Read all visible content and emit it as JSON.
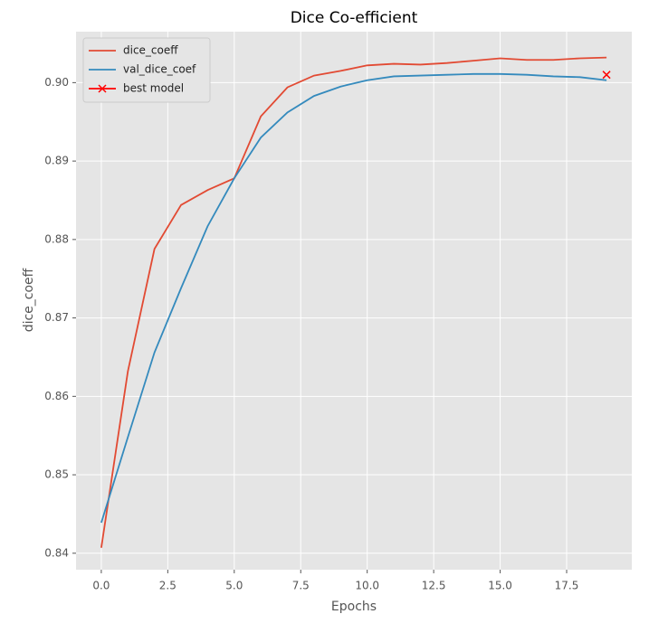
{
  "chart_data": {
    "type": "line",
    "title": "Dice Co-efficient",
    "x_label": "Epochs",
    "y_label": "dice_coeff",
    "x": [
      0,
      1,
      2,
      3,
      4,
      5,
      6,
      7,
      8,
      9,
      10,
      11,
      12,
      13,
      14,
      15,
      16,
      17,
      18,
      19
    ],
    "series": [
      {
        "name": "dice_coeff",
        "color": "#E24A33",
        "values": [
          0.8407,
          0.8632,
          0.8788,
          0.8844,
          0.8863,
          0.8878,
          0.8957,
          0.8994,
          0.9009,
          0.9015,
          0.9022,
          0.9024,
          0.9023,
          0.9025,
          0.9028,
          0.9031,
          0.9029,
          0.9029,
          0.9031,
          0.9032
        ]
      },
      {
        "name": "val_dice_coef",
        "color": "#348ABD",
        "values": [
          0.8439,
          0.8548,
          0.8656,
          0.8738,
          0.8817,
          0.8878,
          0.893,
          0.8962,
          0.8983,
          0.8995,
          0.9003,
          0.9008,
          0.9009,
          0.901,
          0.9011,
          0.9011,
          0.901,
          0.9008,
          0.9007,
          0.9003
        ]
      },
      {
        "name": "best model",
        "color": "#ff0000",
        "marker": "x",
        "x": [
          19
        ],
        "values": [
          0.901
        ]
      }
    ],
    "xlim": [
      -0.95,
      19.95
    ],
    "ylim": [
      0.8379,
      0.9065
    ],
    "xticks": [
      {
        "value": 0,
        "label": "0.0"
      },
      2.5,
      {
        "value": 5,
        "label": "5.0"
      },
      7.5,
      {
        "value": 10,
        "label": "10.0"
      },
      12.5,
      {
        "value": 15,
        "label": "15.0"
      },
      17.5
    ],
    "yticks": [
      0.84,
      0.85,
      0.86,
      0.87,
      0.88,
      0.89,
      {
        "value": 0.9,
        "label": "0.90"
      }
    ],
    "grid": true,
    "legend": "upper left",
    "background": "#E5E5E5"
  }
}
